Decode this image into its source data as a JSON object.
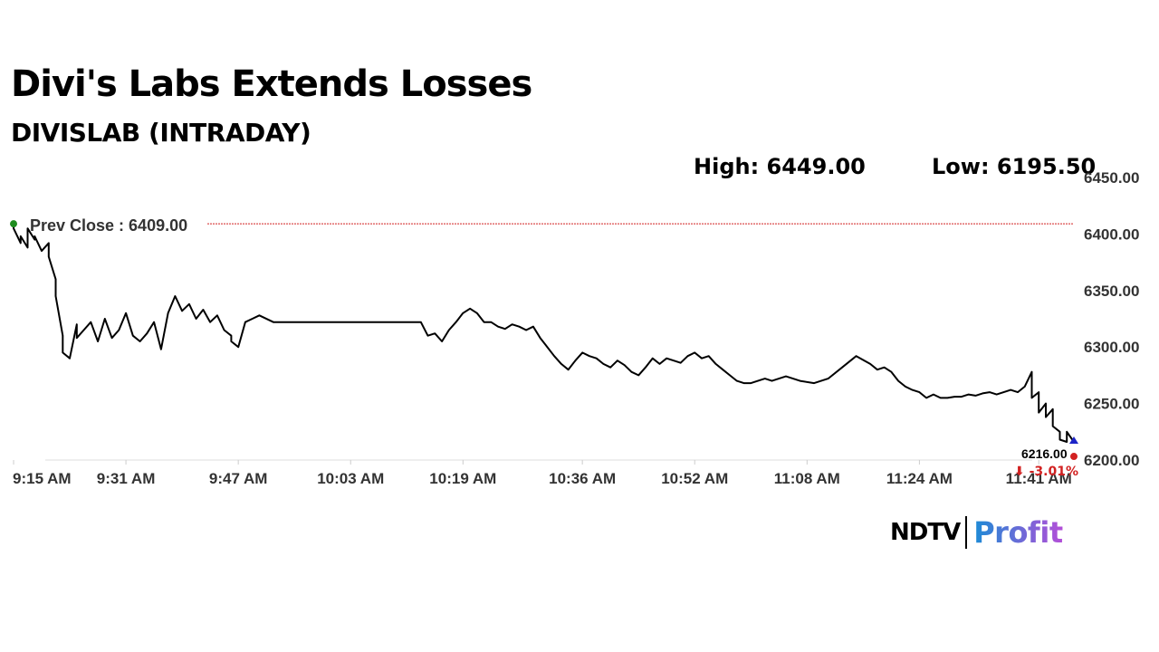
{
  "header": {
    "title": "Divi's Labs Extends Losses",
    "subtitle": "DIVISLAB (INTRADAY)",
    "high_text": "High: 6449.00",
    "low_text": "Low: 6195.50"
  },
  "logo": {
    "ndtv": "NDTV",
    "profit": "Profit",
    "colors": {
      "ndtv": "#000000",
      "ndtv_dot": "#e4002b",
      "profit_start": "#1c8bd6",
      "profit_end": "#b44ed8"
    }
  },
  "chart_data": {
    "type": "line",
    "title": "",
    "xlabel": "",
    "ylabel": "",
    "ylim": [
      6200,
      6450
    ],
    "yticks": [
      6450,
      6400,
      6350,
      6300,
      6250,
      6200
    ],
    "ytick_labels": [
      "6450.00",
      "6400.00",
      "6350.00",
      "6300.00",
      "6250.00",
      "6200.00"
    ],
    "xlim": [
      "9:15",
      "11:46"
    ],
    "xticks": [
      "9:15",
      "9:31",
      "9:47",
      "10:03",
      "10:19",
      "10:36",
      "10:52",
      "11:08",
      "11:24",
      "11:41"
    ],
    "xtick_labels": [
      "9:15 AM",
      "9:31 AM",
      "9:47 AM",
      "10:03 AM",
      "10:19 AM",
      "10:36 AM",
      "10:52 AM",
      "11:08 AM",
      "11:24 AM",
      "11:41 AM"
    ],
    "prev_close": 6409.0,
    "prev_close_label": "Prev Close : 6409.00",
    "last_price_label": "6216.00",
    "change_label": "⬇ -3.01%",
    "grid": false,
    "colors": {
      "line": "#000000",
      "prev_close": "#d22222",
      "start_marker": "#1e8c1e",
      "end_marker": "#1c24c8",
      "change": "#d22222"
    },
    "series": [
      {
        "x": [
          "9:15",
          "9:15",
          "9:16",
          "9:16",
          "9:17",
          "9:17",
          "9:18",
          "9:18",
          "9:19",
          "9:20",
          "9:20",
          "9:21",
          "9:21",
          "9:22",
          "9:22",
          "9:23",
          "9:24",
          "9:24",
          "9:25",
          "9:26",
          "9:27",
          "9:28",
          "9:29",
          "9:30",
          "9:31",
          "9:32",
          "9:33",
          "9:34",
          "9:35",
          "9:36",
          "9:37",
          "9:38",
          "9:39",
          "9:40",
          "9:41",
          "9:42",
          "9:43",
          "9:44",
          "9:45",
          "9:46",
          "9:46",
          "9:47",
          "9:48",
          "9:49",
          "9:50",
          "9:52",
          "9:55",
          "9:58",
          "10:00",
          "10:05",
          "10:10",
          "10:13",
          "10:14",
          "10:15",
          "10:16",
          "10:17",
          "10:18",
          "10:19",
          "10:20",
          "10:21",
          "10:22",
          "10:23",
          "10:24",
          "10:25",
          "10:26",
          "10:27",
          "10:28",
          "10:29",
          "10:30",
          "10:31",
          "10:32",
          "10:33",
          "10:34",
          "10:35",
          "10:36",
          "10:37",
          "10:38",
          "10:39",
          "10:40",
          "10:41",
          "10:42",
          "10:43",
          "10:44",
          "10:45",
          "10:46",
          "10:47",
          "10:48",
          "10:49",
          "10:50",
          "10:51",
          "10:52",
          "10:53",
          "10:54",
          "10:55",
          "10:56",
          "10:57",
          "10:58",
          "10:59",
          "11:00",
          "11:01",
          "11:02",
          "11:03",
          "11:05",
          "11:07",
          "11:09",
          "11:11",
          "11:13",
          "11:15",
          "11:17",
          "11:18",
          "11:19",
          "11:20",
          "11:21",
          "11:22",
          "11:23",
          "11:24",
          "11:25",
          "11:26",
          "11:27",
          "11:28",
          "11:29",
          "11:30",
          "11:31",
          "11:32",
          "11:33",
          "11:34",
          "11:35",
          "11:36",
          "11:37",
          "11:38",
          "11:39",
          "11:40",
          "11:40",
          "11:41",
          "11:41",
          "11:42",
          "11:42",
          "11:43",
          "11:43",
          "11:44",
          "11:44",
          "11:45",
          "11:45",
          "11:46"
        ],
        "y": [
          6409,
          6405,
          6392,
          6398,
          6388,
          6405,
          6395,
          6398,
          6385,
          6392,
          6380,
          6360,
          6345,
          6310,
          6295,
          6290,
          6320,
          6308,
          6315,
          6322,
          6305,
          6325,
          6308,
          6315,
          6330,
          6310,
          6305,
          6312,
          6322,
          6298,
          6330,
          6345,
          6332,
          6338,
          6325,
          6333,
          6322,
          6328,
          6315,
          6310,
          6305,
          6300,
          6322,
          6325,
          6328,
          6322,
          6322,
          6322,
          6322,
          6322,
          6322,
          6322,
          6310,
          6312,
          6305,
          6315,
          6322,
          6330,
          6334,
          6330,
          6322,
          6322,
          6318,
          6316,
          6320,
          6318,
          6315,
          6318,
          6308,
          6300,
          6292,
          6285,
          6280,
          6288,
          6295,
          6292,
          6290,
          6285,
          6282,
          6288,
          6284,
          6278,
          6275,
          6282,
          6290,
          6285,
          6290,
          6288,
          6286,
          6292,
          6295,
          6290,
          6292,
          6285,
          6280,
          6275,
          6270,
          6268,
          6268,
          6270,
          6272,
          6270,
          6274,
          6270,
          6268,
          6272,
          6282,
          6292,
          6285,
          6280,
          6282,
          6278,
          6270,
          6265,
          6262,
          6260,
          6255,
          6258,
          6255,
          6255,
          6256,
          6256,
          6258,
          6257,
          6259,
          6260,
          6258,
          6260,
          6262,
          6260,
          6265,
          6278,
          6255,
          6260,
          6242,
          6250,
          6238,
          6245,
          6230,
          6225,
          6218,
          6216,
          6225,
          6216
        ]
      }
    ]
  }
}
